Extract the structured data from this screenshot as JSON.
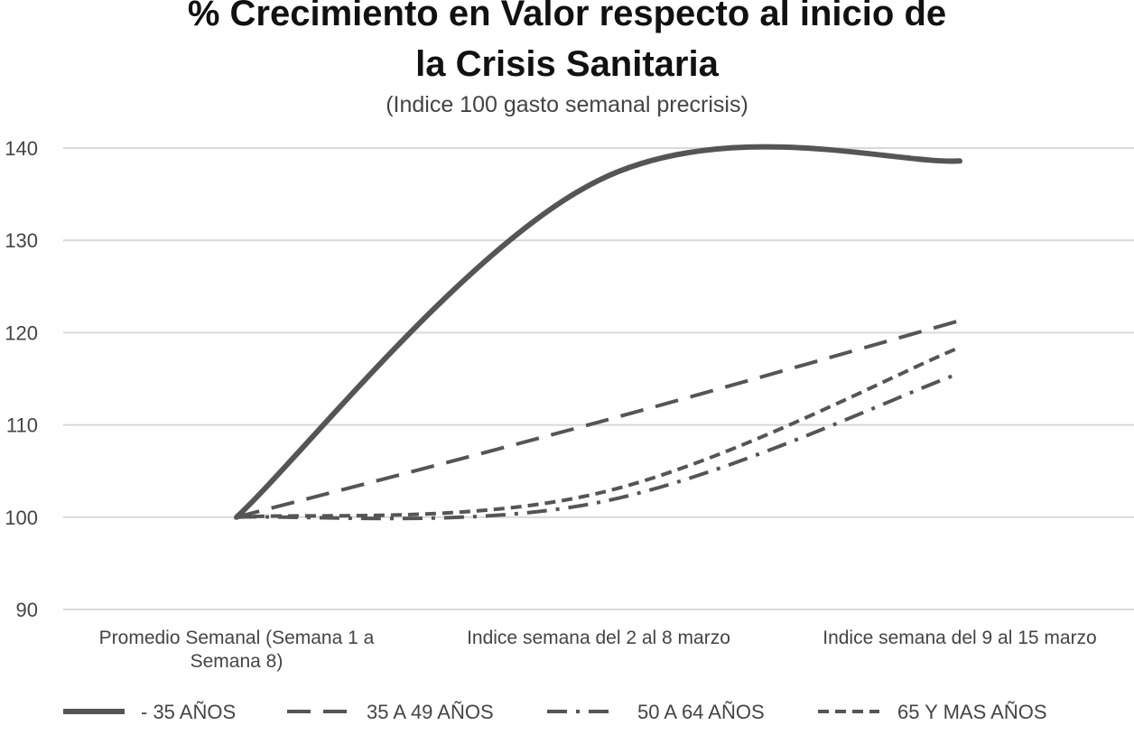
{
  "chart_data": {
    "type": "line",
    "title_line1": "% Crecimiento en Valor respecto al inicio de",
    "title_line2": "la Crisis Sanitaria",
    "subtitle": "(Indice 100 gasto semanal precrisis)",
    "categories": [
      [
        "Promedio Semanal (Semana 1 a",
        "Semana 8)"
      ],
      [
        "Indice semana del 2 al 8 marzo"
      ],
      [
        "Indice semana  del 9 al 15 marzo"
      ]
    ],
    "y_ticks": [
      "90",
      "100",
      "110",
      "120",
      "130",
      "140"
    ],
    "ylim": [
      90,
      140
    ],
    "grid": true,
    "legend_position": "bottom",
    "series": [
      {
        "name": "- 35 AÑOS",
        "values": [
          100,
          136.5,
          138.6
        ],
        "dash": "none",
        "width": 6,
        "color": "#555555"
      },
      {
        "name": "35 A 49 AÑOS",
        "values": [
          100,
          110.3,
          121.3
        ],
        "dash": "26 14",
        "width": 4,
        "color": "#555555"
      },
      {
        "name": "50 A 64 AÑOS",
        "values": [
          100,
          101.6,
          115.6
        ],
        "dash": "22 10 4 10",
        "width": 4,
        "color": "#555555"
      },
      {
        "name": "65 Y MAS AÑOS",
        "values": [
          100,
          102.6,
          118.4
        ],
        "dash": "12 7",
        "width": 4,
        "color": "#555555"
      }
    ]
  }
}
